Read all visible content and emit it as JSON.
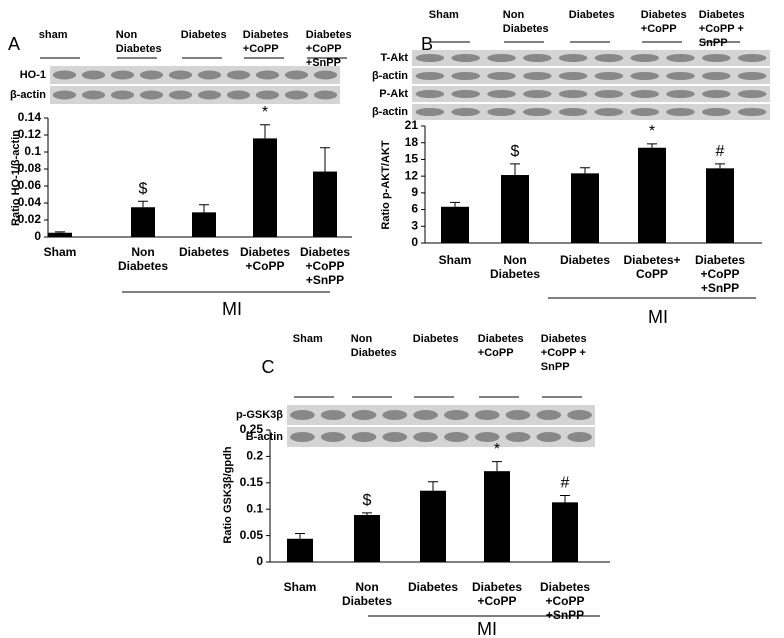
{
  "chart_data": [
    {
      "type": "bar",
      "panel": "A",
      "ylabel": "Ratio HO-1/β-actin",
      "group_label": "MI",
      "blot_headers": [
        "sham",
        "Non Diabetes",
        "Diabetes",
        "Diabetes +CoPP",
        "Diabetes +CoPP +SnPP"
      ],
      "blot_labels": [
        "HO-1",
        "β-actin"
      ],
      "categories": [
        "Sham",
        "Non Diabetes",
        "Diabetes",
        "Diabetes +CoPP",
        "Diabetes +CoPP +SnPP"
      ],
      "values": [
        0.005,
        0.035,
        0.029,
        0.116,
        0.077
      ],
      "errors": [
        0.001,
        0.007,
        0.009,
        0.016,
        0.028
      ],
      "markers": [
        null,
        "$",
        null,
        "*",
        null
      ],
      "color": "#000000",
      "ylim": [
        0,
        0.14
      ],
      "yticks": [
        0,
        0.02,
        0.04,
        0.06,
        0.08,
        0.1,
        0.12,
        0.14
      ]
    },
    {
      "type": "bar",
      "panel": "B",
      "ylabel": "Ratio p-AKT/AKT",
      "group_label": "MI",
      "blot_headers": [
        "Sham",
        "Non Diabetes",
        "Diabetes",
        "Diabetes +CoPP",
        "Diabetes +CoPP + SnPP"
      ],
      "blot_labels": [
        "T-Akt",
        "β-actin",
        "P-Akt",
        "β-actin"
      ],
      "categories": [
        "Sham",
        "Non Diabetes",
        "Diabetes",
        "Diabetes+ CoPP",
        "Diabetes +CoPP +SnPP"
      ],
      "values": [
        6.5,
        12.2,
        12.5,
        17.1,
        13.4
      ],
      "errors": [
        0.8,
        2.0,
        1.0,
        0.7,
        0.8
      ],
      "markers": [
        null,
        "$",
        null,
        "*",
        "#"
      ],
      "color": "#000000",
      "ylim": [
        0,
        21
      ],
      "yticks": [
        0,
        3,
        6,
        9,
        12,
        15,
        18,
        21
      ]
    },
    {
      "type": "bar",
      "panel": "C",
      "ylabel": "Ratio GSK3β/gpdh",
      "group_label": "MI",
      "blot_headers": [
        "Sham",
        "Non Diabetes",
        "Diabetes",
        "Diabetes +CoPP",
        "Diabetes +CoPP + SnPP"
      ],
      "blot_labels": [
        "p-GSK3β",
        "B-actin"
      ],
      "categories": [
        "Sham",
        "Non Diabetes",
        "Diabetes",
        "Diabetes +CoPP",
        "Diabetes +CoPP +SnPP"
      ],
      "values": [
        0.044,
        0.089,
        0.135,
        0.172,
        0.113
      ],
      "errors": [
        0.01,
        0.004,
        0.017,
        0.018,
        0.013
      ],
      "markers": [
        null,
        "$",
        null,
        "*",
        "#"
      ],
      "color": "#000000",
      "ylim": [
        0,
        0.25
      ],
      "yticks": [
        0,
        0.05,
        0.1,
        0.15,
        0.2,
        0.25
      ]
    }
  ]
}
